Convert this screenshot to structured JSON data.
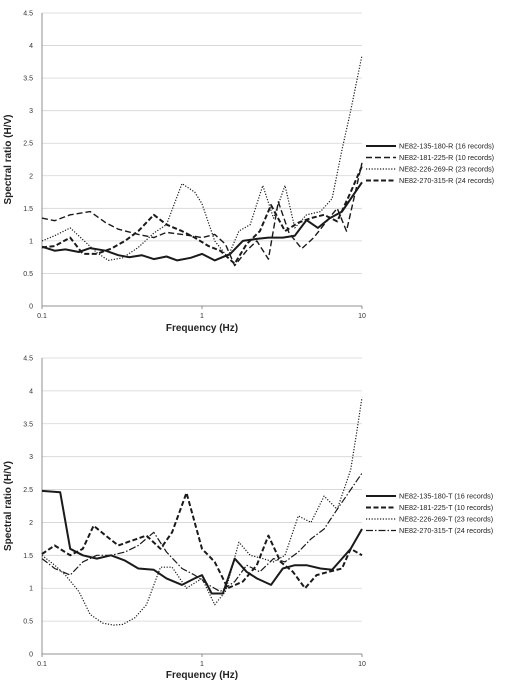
{
  "chart_data": [
    {
      "type": "line",
      "title": "",
      "xlabel": "Frequency (Hz)",
      "ylabel": "Spectral ratio (H/V)",
      "x_scale": "log",
      "xlim": [
        0.1,
        10
      ],
      "ylim": [
        0,
        4.5
      ],
      "x_ticks": [
        "0.1",
        "1",
        "10"
      ],
      "y_ticks": [
        "0",
        "0.5",
        "1",
        "1.5",
        "2",
        "2.5",
        "3",
        "3.5",
        "4",
        "4.5"
      ],
      "grid": "horizontal",
      "legend_position": "right",
      "series": [
        {
          "name": "NE82-135-180-R (16 records)",
          "style": "solid-thick",
          "x": [
            0.1,
            0.12,
            0.14,
            0.17,
            0.2,
            0.25,
            0.3,
            0.35,
            0.42,
            0.5,
            0.6,
            0.7,
            0.85,
            1.0,
            1.2,
            1.5,
            1.8,
            2.2,
            2.6,
            3.2,
            3.8,
            4.5,
            5.3,
            6.3,
            7.5,
            10
          ],
          "y": [
            0.91,
            0.85,
            0.87,
            0.83,
            0.89,
            0.85,
            0.78,
            0.75,
            0.78,
            0.72,
            0.76,
            0.7,
            0.74,
            0.8,
            0.7,
            0.8,
            1.0,
            1.03,
            1.05,
            1.05,
            1.08,
            1.32,
            1.2,
            1.35,
            1.45,
            1.9
          ]
        },
        {
          "name": "NE82-181-225-R (10 records)",
          "style": "dashed",
          "x": [
            0.1,
            0.12,
            0.15,
            0.2,
            0.25,
            0.3,
            0.4,
            0.5,
            0.6,
            0.75,
            0.9,
            1.0,
            1.2,
            1.4,
            1.6,
            1.9,
            2.2,
            2.6,
            3.0,
            3.5,
            4.2,
            5.0,
            6.0,
            7.0,
            8.0,
            10
          ],
          "y": [
            1.35,
            1.31,
            1.4,
            1.45,
            1.28,
            1.18,
            1.1,
            1.05,
            1.13,
            1.1,
            1.07,
            1.05,
            1.1,
            0.95,
            0.62,
            0.85,
            1.0,
            0.72,
            1.6,
            1.12,
            0.88,
            1.05,
            1.3,
            1.5,
            1.15,
            2.2
          ]
        },
        {
          "name": "NE82-226-269-R (23 records)",
          "style": "dotted",
          "x": [
            0.1,
            0.12,
            0.15,
            0.18,
            0.22,
            0.26,
            0.32,
            0.4,
            0.5,
            0.6,
            0.75,
            0.9,
            1.0,
            1.2,
            1.45,
            1.7,
            2.0,
            2.4,
            2.8,
            3.3,
            3.8,
            4.5,
            5.5,
            6.5,
            7.5,
            8.5,
            10
          ],
          "y": [
            1.0,
            1.08,
            1.2,
            1.02,
            0.82,
            0.7,
            0.74,
            0.9,
            1.12,
            1.25,
            1.88,
            1.75,
            1.57,
            1.0,
            0.75,
            1.15,
            1.25,
            1.85,
            1.35,
            1.85,
            1.2,
            1.4,
            1.45,
            1.65,
            2.4,
            3.0,
            3.85
          ]
        },
        {
          "name": "NE82-270-315-R (24 records)",
          "style": "dashed-thick",
          "x": [
            0.1,
            0.12,
            0.15,
            0.18,
            0.22,
            0.27,
            0.33,
            0.4,
            0.5,
            0.6,
            0.75,
            0.9,
            1.1,
            1.3,
            1.6,
            1.9,
            2.3,
            2.7,
            3.3,
            4.0,
            4.8,
            5.8,
            7.0,
            8.5,
            10
          ],
          "y": [
            0.9,
            0.92,
            1.05,
            0.8,
            0.8,
            0.88,
            1.0,
            1.15,
            1.4,
            1.25,
            1.15,
            1.05,
            0.92,
            0.85,
            0.65,
            0.95,
            1.15,
            1.55,
            1.15,
            1.28,
            1.35,
            1.4,
            1.3,
            1.75,
            2.15
          ]
        }
      ]
    },
    {
      "type": "line",
      "title": "",
      "xlabel": "Frequency (Hz)",
      "ylabel": "Spectral ratio (H/V)",
      "x_scale": "log",
      "xlim": [
        0.1,
        10
      ],
      "ylim": [
        0,
        4.5
      ],
      "x_ticks": [
        "0.1",
        "1",
        "10"
      ],
      "y_ticks": [
        "0",
        "0.5",
        "1",
        "1.5",
        "2",
        "2.5",
        "3",
        "3.5",
        "4",
        "4.5"
      ],
      "grid": "horizontal",
      "legend_position": "right",
      "series": [
        {
          "name": "NE82-135-180-T (16 records)",
          "style": "solid-thick",
          "x": [
            0.1,
            0.13,
            0.15,
            0.18,
            0.22,
            0.27,
            0.33,
            0.4,
            0.5,
            0.6,
            0.75,
            0.9,
            1.0,
            1.15,
            1.35,
            1.6,
            1.9,
            2.2,
            2.7,
            3.2,
            3.8,
            4.5,
            5.5,
            6.5,
            7.5,
            8.5,
            10
          ],
          "y": [
            2.48,
            2.46,
            1.6,
            1.5,
            1.45,
            1.5,
            1.42,
            1.3,
            1.28,
            1.15,
            1.05,
            1.15,
            1.2,
            0.92,
            0.92,
            1.45,
            1.25,
            1.15,
            1.05,
            1.3,
            1.35,
            1.35,
            1.3,
            1.28,
            1.45,
            1.6,
            1.9
          ]
        },
        {
          "name": "NE82-181-225-T (10 records)",
          "style": "dashed-thick",
          "x": [
            0.1,
            0.12,
            0.15,
            0.18,
            0.21,
            0.25,
            0.3,
            0.36,
            0.45,
            0.55,
            0.65,
            0.8,
            1.0,
            1.2,
            1.45,
            1.8,
            2.2,
            2.6,
            3.1,
            3.7,
            4.4,
            5.2,
            6.2,
            7.5,
            8.5,
            10
          ],
          "y": [
            1.52,
            1.65,
            1.5,
            1.6,
            1.95,
            1.8,
            1.65,
            1.72,
            1.8,
            1.6,
            1.85,
            2.45,
            1.6,
            1.4,
            1.0,
            1.1,
            1.35,
            1.8,
            1.4,
            1.25,
            1.0,
            1.2,
            1.25,
            1.3,
            1.6,
            1.5
          ]
        },
        {
          "name": "NE82-226-269-T (23 records)",
          "style": "dotted",
          "x": [
            0.1,
            0.12,
            0.14,
            0.17,
            0.2,
            0.24,
            0.28,
            0.32,
            0.38,
            0.45,
            0.55,
            0.65,
            0.8,
            1.0,
            1.2,
            1.4,
            1.7,
            2.0,
            2.4,
            2.8,
            3.3,
            4.0,
            4.8,
            5.8,
            7.0,
            8.5,
            9.3,
            10
          ],
          "y": [
            1.5,
            1.35,
            1.2,
            0.95,
            0.6,
            0.47,
            0.44,
            0.45,
            0.55,
            0.75,
            1.32,
            1.32,
            1.0,
            1.15,
            0.75,
            0.95,
            1.7,
            1.5,
            1.45,
            1.4,
            1.5,
            2.1,
            2.0,
            2.4,
            2.2,
            2.8,
            3.4,
            3.9
          ]
        },
        {
          "name": "NE82-270-315-T (24 records)",
          "style": "dashdot",
          "x": [
            0.1,
            0.12,
            0.15,
            0.18,
            0.22,
            0.27,
            0.33,
            0.4,
            0.5,
            0.6,
            0.75,
            0.9,
            1.1,
            1.3,
            1.6,
            1.9,
            2.3,
            2.8,
            3.3,
            4.0,
            4.8,
            5.8,
            7.0,
            8.5,
            10
          ],
          "y": [
            1.45,
            1.3,
            1.2,
            1.4,
            1.5,
            1.5,
            1.55,
            1.65,
            1.85,
            1.55,
            1.3,
            1.2,
            1.05,
            0.95,
            1.1,
            1.35,
            1.25,
            1.45,
            1.4,
            1.55,
            1.75,
            1.9,
            2.2,
            2.5,
            2.75
          ]
        }
      ]
    }
  ]
}
